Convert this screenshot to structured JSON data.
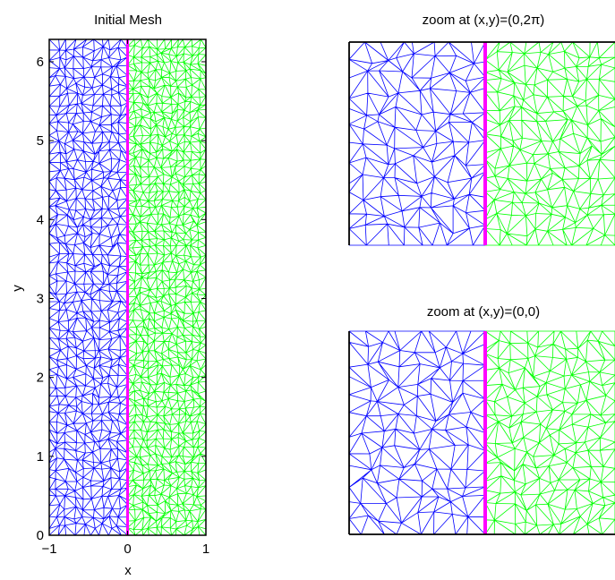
{
  "figure": {
    "colors": {
      "left_mesh": "#0000ff",
      "right_mesh": "#00ff00",
      "interface": "#ff00ff",
      "frame": "#000000"
    }
  },
  "chart_data": [
    {
      "type": "mesh",
      "title": "Initial Mesh",
      "xlabel": "x",
      "ylabel": "y",
      "xlim": [
        -1,
        1
      ],
      "ylim": [
        0,
        6.2832
      ],
      "xticks": [
        -1,
        0,
        1
      ],
      "xtick_labels": [
        "−1",
        "0",
        "1"
      ],
      "yticks": [
        0,
        1,
        2,
        3,
        4,
        5,
        6
      ],
      "ytick_labels": [
        "0",
        "1",
        "2",
        "3",
        "4",
        "5",
        "6"
      ],
      "regions": [
        {
          "domain": "left",
          "x_range": [
            -1,
            0
          ],
          "color": "blue",
          "mesh": "triangular"
        },
        {
          "domain": "right",
          "x_range": [
            0,
            1
          ],
          "color": "green",
          "mesh": "triangular"
        }
      ],
      "interface": {
        "x": 0,
        "color": "magenta"
      }
    },
    {
      "type": "mesh",
      "title": "zoom at (x,y)=(0,2π)",
      "regions": [
        {
          "domain": "left",
          "color": "blue",
          "mesh": "triangular"
        },
        {
          "domain": "right",
          "color": "green",
          "mesh": "triangular"
        }
      ],
      "interface": {
        "x": 0,
        "color": "magenta"
      }
    },
    {
      "type": "mesh",
      "title": "zoom at (x,y)=(0,0)",
      "regions": [
        {
          "domain": "left",
          "color": "blue",
          "mesh": "triangular"
        },
        {
          "domain": "right",
          "color": "green",
          "mesh": "triangular"
        }
      ],
      "interface": {
        "x": 0,
        "color": "magenta"
      }
    }
  ]
}
